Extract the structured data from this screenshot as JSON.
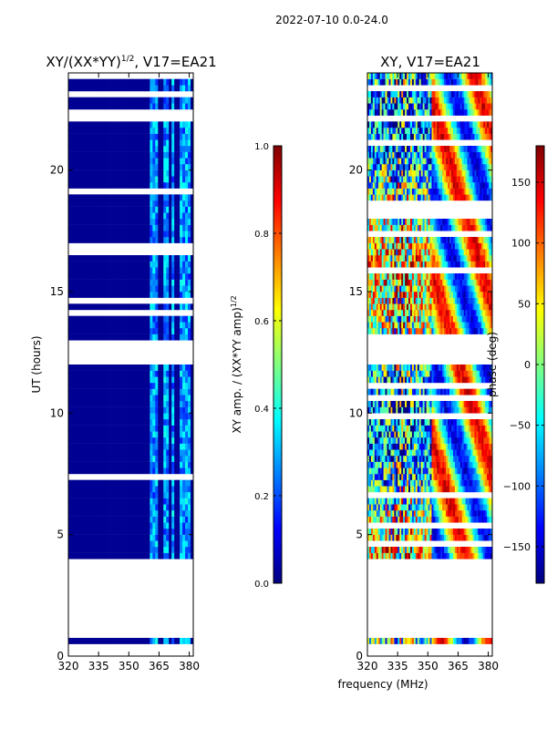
{
  "suptitle": "2022-07-10 0.0-24.0",
  "shared_xlabel": "frequency (MHz)",
  "colormap_stops": [
    "#00007f",
    "#0000ff",
    "#0080ff",
    "#00ffff",
    "#80ff80",
    "#ffff00",
    "#ff8000",
    "#ff0000",
    "#7f0000"
  ],
  "gap_color": "#ffffff",
  "chart_data": [
    {
      "type": "heatmap",
      "title": "XY/(XX*YY)",
      "title_exponent": "1/2",
      "title_suffix": ", V17=EA21",
      "xlabel": "",
      "ylabel": "UT (hours)",
      "xlim": [
        320,
        382
      ],
      "ylim": [
        0,
        24
      ],
      "xticks": [
        320,
        335,
        350,
        365,
        380
      ],
      "yticks": [
        0,
        5,
        10,
        15,
        20
      ],
      "observed_intervals_hours": [
        [
          0.5,
          0.75
        ],
        [
          4.0,
          12.0
        ],
        [
          12.9,
          24.0
        ]
      ],
      "base_value": 0.02,
      "bright_channels_mhz": [
        [
          361,
          363.5
        ],
        [
          363.5,
          365
        ],
        [
          367,
          370
        ],
        [
          371,
          373
        ],
        [
          375,
          377.5
        ],
        [
          378.5,
          380
        ]
      ],
      "bright_value_range": [
        0.15,
        0.4
      ],
      "colorbar": {
        "label": "XY amp. / (XX*YY amp)",
        "label_exponent": "1/2",
        "range": [
          0.0,
          1.0
        ],
        "ticks": [
          0.0,
          0.2,
          0.4,
          0.6,
          0.8,
          1.0
        ],
        "tick_labels": [
          "0.0",
          "0.2",
          "0.4",
          "0.6",
          "0.8",
          "1.0"
        ]
      }
    },
    {
      "type": "heatmap",
      "title": "XY, V17=EA21",
      "xlabel": "frequency (MHz)",
      "ylabel": "",
      "xlim": [
        320,
        382
      ],
      "ylim": [
        0,
        24
      ],
      "xticks": [
        320,
        335,
        350,
        365,
        380
      ],
      "yticks": [
        0,
        5,
        10,
        15,
        20
      ],
      "observed_intervals_hours": [
        [
          0.5,
          0.75
        ],
        [
          4.0,
          12.0
        ],
        [
          12.9,
          24.0
        ]
      ],
      "value_range_deg": [
        -180,
        180
      ],
      "smooth_band_mhz": [
        352,
        382
      ],
      "colorbar": {
        "label": "phase (deg)",
        "range": [
          -180,
          180
        ],
        "ticks": [
          -150,
          -100,
          -50,
          0,
          50,
          100,
          150
        ],
        "tick_labels": [
          "−150",
          "−100",
          "−50",
          "0",
          "50",
          "100",
          "150"
        ]
      }
    }
  ]
}
